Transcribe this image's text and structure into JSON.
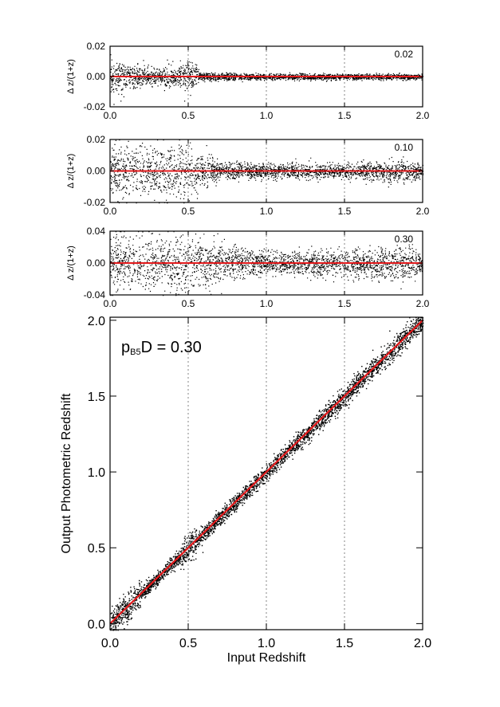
{
  "chart_data": [
    {
      "type": "scatter",
      "panel": "residual-top",
      "annotation": "0.02",
      "ylabel": "Δ z/(1+z)",
      "xlim": [
        0.0,
        2.0
      ],
      "ylim": [
        -0.02,
        0.02
      ],
      "xticks": [
        "0.0",
        "0.5",
        "1.0",
        "1.5",
        "2.0"
      ],
      "yticks": [
        "0.02",
        "0.00",
        "-0.02"
      ],
      "ytick_values": [
        0.02,
        0.0,
        -0.02
      ],
      "vertical_dotted_lines": [
        0.5,
        1.0,
        1.5
      ],
      "reference_line": {
        "y": 0.0,
        "color": "#e31a1c"
      },
      "scatter_envelope": [
        {
          "x": 0.0,
          "spread": 0.012
        },
        {
          "x": 0.1,
          "spread": 0.01
        },
        {
          "x": 0.2,
          "spread": 0.008
        },
        {
          "x": 0.3,
          "spread": 0.007
        },
        {
          "x": 0.45,
          "spread": 0.009
        },
        {
          "x": 0.5,
          "spread": 0.012
        },
        {
          "x": 0.6,
          "spread": 0.003
        },
        {
          "x": 1.0,
          "spread": 0.002
        },
        {
          "x": 1.5,
          "spread": 0.002
        },
        {
          "x": 2.0,
          "spread": 0.002
        }
      ]
    },
    {
      "type": "scatter",
      "panel": "residual-middle",
      "annotation": "0.10",
      "ylabel": "Δ z/(1+z)",
      "xlim": [
        0.0,
        2.0
      ],
      "ylim": [
        -0.02,
        0.02
      ],
      "xticks": [
        "0.0",
        "0.5",
        "1.0",
        "1.5",
        "2.0"
      ],
      "yticks": [
        "0.02",
        "0.00",
        "-0.02"
      ],
      "ytick_values": [
        0.02,
        0.0,
        -0.02
      ],
      "vertical_dotted_lines": [
        0.5,
        1.0,
        1.5
      ],
      "reference_line": {
        "y": 0.0,
        "color": "#e31a1c"
      },
      "scatter_envelope": [
        {
          "x": 0.0,
          "spread": 0.02
        },
        {
          "x": 0.2,
          "spread": 0.018
        },
        {
          "x": 0.45,
          "spread": 0.02
        },
        {
          "x": 0.6,
          "spread": 0.012
        },
        {
          "x": 0.7,
          "spread": 0.006
        },
        {
          "x": 1.0,
          "spread": 0.005
        },
        {
          "x": 1.5,
          "spread": 0.005
        },
        {
          "x": 1.9,
          "spread": 0.008
        },
        {
          "x": 2.0,
          "spread": 0.004
        }
      ]
    },
    {
      "type": "scatter",
      "panel": "residual-bottom",
      "annotation": "0.30",
      "ylabel": "Δ z/(1+z)",
      "xlim": [
        0.0,
        2.0
      ],
      "ylim": [
        -0.04,
        0.04
      ],
      "xticks": [
        "0.0",
        "0.5",
        "1.0",
        "1.5",
        "2.0"
      ],
      "yticks": [
        "0.04",
        "0.00",
        "-0.04"
      ],
      "ytick_values": [
        0.04,
        0.0,
        -0.04
      ],
      "vertical_dotted_lines": [
        0.5,
        1.0,
        1.5
      ],
      "reference_line": {
        "y": 0.0,
        "color": "#e31a1c"
      },
      "scatter_envelope": [
        {
          "x": 0.0,
          "spread": 0.04
        },
        {
          "x": 0.3,
          "spread": 0.035
        },
        {
          "x": 0.5,
          "spread": 0.04
        },
        {
          "x": 0.7,
          "spread": 0.025
        },
        {
          "x": 1.0,
          "spread": 0.015
        },
        {
          "x": 1.5,
          "spread": 0.018
        },
        {
          "x": 1.9,
          "spread": 0.025
        },
        {
          "x": 2.0,
          "spread": 0.01
        }
      ]
    },
    {
      "type": "scatter",
      "panel": "main",
      "annotation_prefix": "p",
      "annotation_subscript": "B5",
      "annotation_suffix": "D = 0.30",
      "xlabel": "Input Redshift",
      "ylabel": "Output Photometric Redshift",
      "xlim": [
        0.0,
        2.0
      ],
      "ylim": [
        -0.04,
        2.02
      ],
      "xticks": [
        "0.0",
        "0.5",
        "1.0",
        "1.5",
        "2.0"
      ],
      "yticks": [
        "0.0",
        "0.5",
        "1.0",
        "1.5",
        "2.0"
      ],
      "ytick_values": [
        0.0,
        0.5,
        1.0,
        1.5,
        2.0
      ],
      "vertical_dotted_lines": [
        0.5,
        1.0,
        1.5
      ],
      "reference_line": {
        "from": [
          0.0,
          0.0
        ],
        "to": [
          2.0,
          2.0
        ],
        "color": "#e31a1c"
      },
      "scatter_width": 0.04
    }
  ]
}
